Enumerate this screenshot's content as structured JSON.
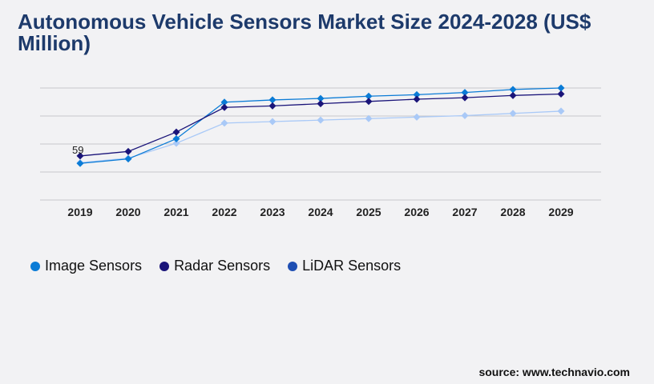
{
  "title": "Autonomous Vehicle Sensors Market Size 2024-2028 (US$ Million)",
  "source": "source: www.technavio.com",
  "chart_data": {
    "type": "line",
    "title": "Autonomous Vehicle Sensors Market Size 2024-2028 (US$ Million)",
    "categories": [
      "2019",
      "2020",
      "2021",
      "2022",
      "2023",
      "2024",
      "2025",
      "2026",
      "2027",
      "2028",
      "2029"
    ],
    "ylim": [
      0,
      150
    ],
    "grid": true,
    "legend": "bottom-left",
    "annotations": [
      {
        "series": "Radar Sensors",
        "x": "2019",
        "label": "59"
      }
    ],
    "series": [
      {
        "name": "Image Sensors",
        "color": "#0a7bd6",
        "legend_color": "#0a7bd6",
        "values": [
          49,
          55,
          82,
          131,
          134,
          136,
          139,
          141,
          144,
          148,
          150
        ]
      },
      {
        "name": "Radar Sensors",
        "color": "#1a1479",
        "legend_color": "#1a1479",
        "values": [
          59,
          65,
          91,
          124,
          126,
          129,
          132,
          135,
          137,
          140,
          142
        ]
      },
      {
        "name": "LiDAR Sensors",
        "color": "#a9c9f7",
        "legend_color": "#1f4fb3",
        "values": [
          50,
          56,
          76,
          103,
          105,
          107,
          109,
          111,
          113,
          116,
          119
        ]
      }
    ]
  }
}
